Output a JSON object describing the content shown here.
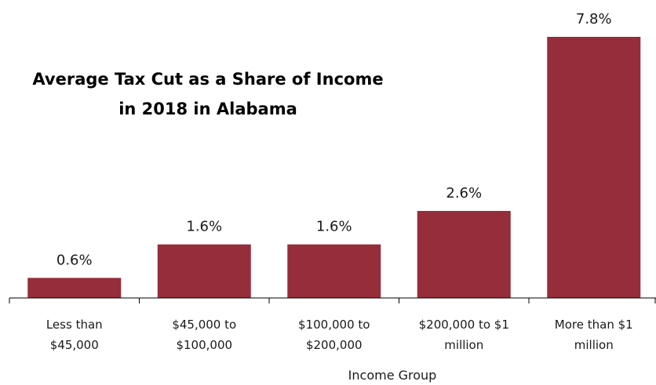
{
  "chart_data": {
    "type": "bar",
    "title_lines": [
      "Average Tax Cut as a Share of Income",
      "in 2018 in Alabama"
    ],
    "xlabel": "Income Group",
    "ylabel": "",
    "categories": [
      [
        "Less than",
        "$45,000"
      ],
      [
        "$45,000 to",
        "$100,000"
      ],
      [
        "$100,000 to",
        "$200,000"
      ],
      [
        "$200,000 to $1",
        "million"
      ],
      [
        "More than $1",
        "million"
      ]
    ],
    "values": [
      0.6,
      1.6,
      1.6,
      2.6,
      7.8
    ],
    "data_labels": [
      "0.6%",
      "1.6%",
      "1.6%",
      "2.6%",
      "7.8%"
    ],
    "ylim": [
      0,
      7.8
    ],
    "grid": false,
    "bar_color": "#962d3a",
    "axis_color": "#000000"
  }
}
